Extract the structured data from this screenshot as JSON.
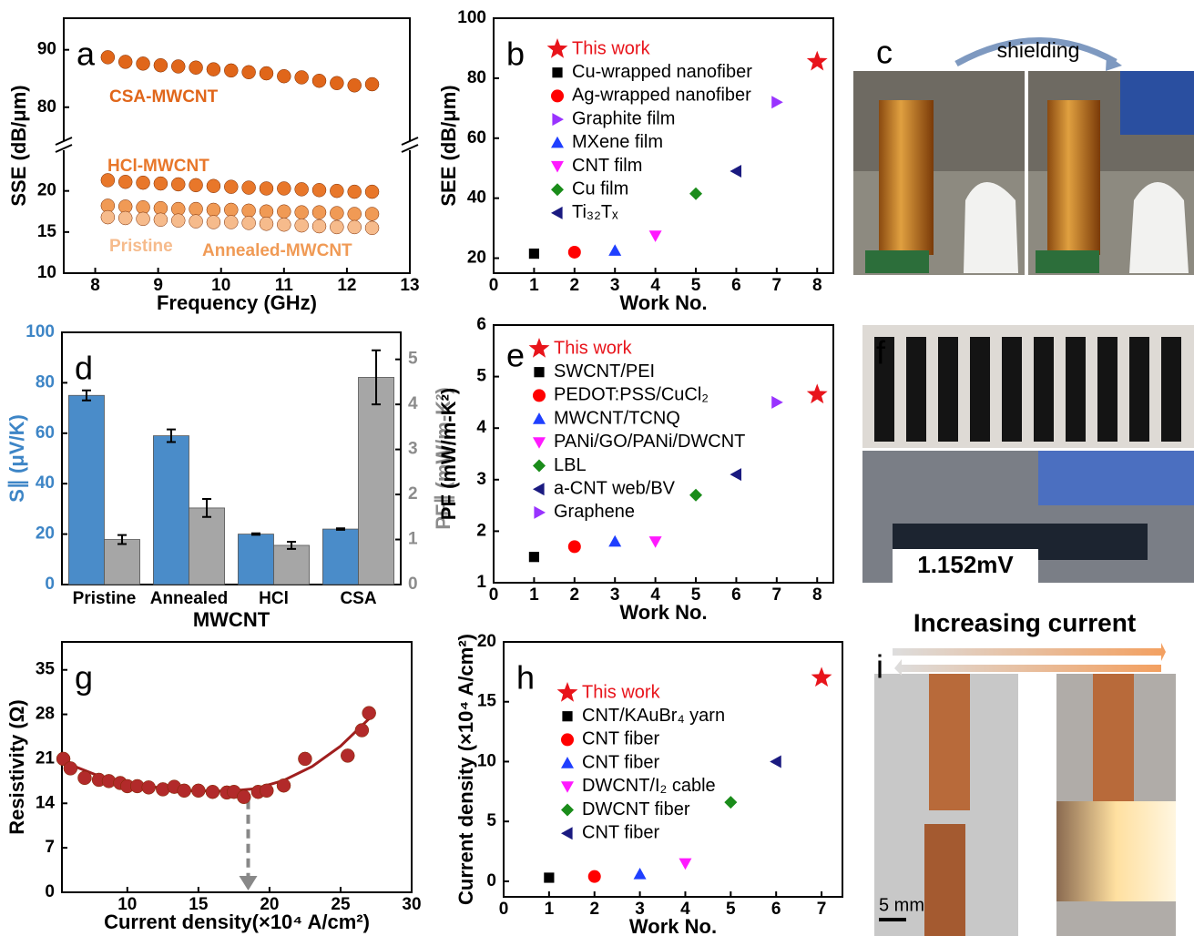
{
  "chart_data": [
    {
      "panel": "a",
      "type": "scatter",
      "x_label": "Frequency (GHz)",
      "y_label": "SSE (dB/μm)",
      "xlim": [
        7.5,
        13
      ],
      "xticks": [
        8,
        9,
        10,
        11,
        12,
        13
      ],
      "ylim": [
        10,
        95.5
      ],
      "ybreak": [
        25.5,
        73.3
      ],
      "yticks": [
        10,
        15,
        20,
        80,
        90
      ],
      "x": [
        8.2,
        8.48,
        8.76,
        9.04,
        9.32,
        9.6,
        9.88,
        10.16,
        10.44,
        10.72,
        11,
        11.28,
        11.56,
        11.84,
        12.12,
        12.4
      ],
      "series": [
        {
          "name": "CSA-MWCNT",
          "color": "#e0661a",
          "marker": "circle",
          "values": [
            88.7,
            87.9,
            87.6,
            87.3,
            87.1,
            86.9,
            86.6,
            86.4,
            86.1,
            85.9,
            85.4,
            85.2,
            84.6,
            84.2,
            83.8,
            84
          ]
        },
        {
          "name": "HCl-MWCNT",
          "color": "#e8772a",
          "marker": "circle",
          "values": [
            21.3,
            21.1,
            21,
            20.9,
            20.8,
            20.7,
            20.6,
            20.5,
            20.4,
            20.3,
            20.3,
            20.2,
            20.1,
            20,
            19.9,
            19.9
          ]
        },
        {
          "name": "Annealed-MWCNT",
          "color": "#f09a55",
          "marker": "circle",
          "values": [
            18.2,
            18.1,
            18,
            17.9,
            17.8,
            17.8,
            17.7,
            17.7,
            17.6,
            17.5,
            17.5,
            17.4,
            17.4,
            17.3,
            17.2,
            17.2
          ]
        },
        {
          "name": "Pristine",
          "color": "#f6bb8c",
          "marker": "circle",
          "values": [
            16.8,
            16.7,
            16.6,
            16.5,
            16.4,
            16.3,
            16.2,
            16.2,
            16.1,
            16,
            15.9,
            15.8,
            15.7,
            15.6,
            15.6,
            15.5
          ]
        }
      ]
    },
    {
      "panel": "b",
      "type": "scatter",
      "x_label": "Work No.",
      "y_label": "SEE (dB/μm)",
      "legend": "upper left",
      "xlim": [
        0,
        8.4
      ],
      "xticks": [
        0,
        1,
        2,
        3,
        4,
        5,
        6,
        7,
        8
      ],
      "ylim": [
        15,
        100
      ],
      "yticks": [
        20,
        40,
        60,
        80,
        100
      ],
      "series": [
        {
          "name": "This work",
          "color": "#e8141b",
          "marker": "star",
          "x": [
            8
          ],
          "values": [
            85.5
          ]
        },
        {
          "name": "Cu-wrapped nanofiber",
          "color": "#000000",
          "marker": "square",
          "x": [
            1
          ],
          "values": [
            21.5
          ]
        },
        {
          "name": "Ag-wrapped nanofiber",
          "color": "#ff0000",
          "marker": "circle",
          "x": [
            2
          ],
          "values": [
            22
          ]
        },
        {
          "name": "Graphite film",
          "color": "#9933ff",
          "marker": "triangle-right",
          "x": [
            7
          ],
          "values": [
            72
          ]
        },
        {
          "name": "MXene film",
          "color": "#1f3fff",
          "marker": "triangle-up",
          "x": [
            3
          ],
          "values": [
            22.5
          ]
        },
        {
          "name": "CNT film",
          "color": "#ff19ff",
          "marker": "triangle-down",
          "x": [
            4
          ],
          "values": [
            27.5
          ]
        },
        {
          "name": "Cu film",
          "color": "#1a8c1a",
          "marker": "diamond",
          "x": [
            5
          ],
          "values": [
            41.5
          ]
        },
        {
          "name": "Ti₃₂Tₓ",
          "color": "#1a1a80",
          "marker": "triangle-left",
          "x": [
            6
          ],
          "values": [
            49
          ]
        }
      ]
    },
    {
      "panel": "d",
      "type": "bar",
      "x_label": "MWCNT",
      "y_label": "S∥ (μV/K)",
      "y2_label": "PF∥ (mW/m-K²)",
      "categories": [
        "Pristine",
        "Annealed",
        "HCl",
        "CSA"
      ],
      "ylim": [
        0,
        100
      ],
      "yticks": [
        0,
        20,
        40,
        60,
        80,
        100
      ],
      "y2lim": [
        0,
        5.6
      ],
      "y2ticks": [
        0,
        1,
        2,
        3,
        4,
        5
      ],
      "series": [
        {
          "color": "#4a8cc9",
          "values": [
            75,
            59,
            20,
            22
          ],
          "errors": [
            2,
            2.5,
            0.3,
            0.3
          ]
        },
        {
          "color": "#a6a6a6",
          "axis": "y2",
          "values": [
            1.0,
            1.7,
            0.87,
            4.6
          ],
          "errors": [
            0.1,
            0.2,
            0.08,
            0.6
          ]
        }
      ]
    },
    {
      "panel": "e",
      "type": "scatter",
      "x_label": "Work No.",
      "y_label": "PF (mW/m-K²)",
      "legend": "upper left",
      "xlim": [
        0,
        8.4
      ],
      "xticks": [
        0,
        1,
        2,
        3,
        4,
        5,
        6,
        7,
        8
      ],
      "ylim": [
        1,
        6
      ],
      "yticks": [
        1,
        2,
        3,
        4,
        5,
        6
      ],
      "series": [
        {
          "name": "This work",
          "color": "#e8141b",
          "marker": "star",
          "x": [
            8
          ],
          "values": [
            4.65
          ]
        },
        {
          "name": "SWCNT/PEI",
          "color": "#000000",
          "marker": "square",
          "x": [
            1
          ],
          "values": [
            1.5
          ]
        },
        {
          "name": "PEDOT:PSS/CuCl₂",
          "color": "#ff0000",
          "marker": "circle",
          "x": [
            2
          ],
          "values": [
            1.7
          ]
        },
        {
          "name": "MWCNT/TCNQ",
          "color": "#1f3fff",
          "marker": "triangle-up",
          "x": [
            3
          ],
          "values": [
            1.8
          ]
        },
        {
          "name": "PANi/GO/PANi/DWCNT",
          "color": "#ff19ff",
          "marker": "triangle-down",
          "x": [
            4
          ],
          "values": [
            1.8
          ]
        },
        {
          "name": "LBL",
          "color": "#1a8c1a",
          "marker": "diamond",
          "x": [
            5
          ],
          "values": [
            2.7
          ]
        },
        {
          "name": "a-CNT web/BV",
          "color": "#1a1a80",
          "marker": "triangle-left",
          "x": [
            6
          ],
          "values": [
            3.1
          ]
        },
        {
          "name": "Graphene",
          "color": "#9933ff",
          "marker": "triangle-right",
          "x": [
            7
          ],
          "values": [
            4.5
          ]
        }
      ]
    },
    {
      "panel": "g",
      "type": "scatter",
      "x_label": "Current density(×10⁴ A/cm²)",
      "y_label": "Resistivity (Ω)",
      "xlim": [
        5.4,
        30
      ],
      "xticks": [
        10,
        15,
        20,
        25,
        30
      ],
      "ylim": [
        0,
        39.4
      ],
      "yticks": [
        0,
        7,
        14,
        21,
        28,
        35
      ],
      "arrow_x": 18.5,
      "series": [
        {
          "color": "#b22a2a",
          "marker": "circle",
          "x": [
            5.5,
            6,
            7,
            8,
            8.7,
            9.5,
            10,
            10.7,
            11.5,
            12.5,
            13.3,
            14,
            15,
            16,
            17,
            17.5,
            18.2,
            19.2,
            19.8,
            21,
            22.5,
            25.5,
            26.5,
            27
          ],
          "values": [
            21,
            19.5,
            18,
            17.7,
            17.5,
            17.2,
            16.7,
            16.7,
            16.5,
            16.2,
            16.6,
            16,
            16,
            15.8,
            15.7,
            15.8,
            15,
            15.8,
            16,
            16.8,
            21,
            21.5,
            25.5,
            28.2
          ]
        }
      ],
      "fit": {
        "color": "#a01e1e",
        "x": [
          5.4,
          8,
          11,
          14,
          17,
          19,
          21,
          23,
          25,
          27
        ],
        "values": [
          20.6,
          18.3,
          16.8,
          16.0,
          15.9,
          16.3,
          17.6,
          19.8,
          23.0,
          27.3
        ]
      }
    },
    {
      "panel": "h",
      "type": "scatter",
      "x_label": "Work No.",
      "y_label": "Current density (×10⁴ A/cm²)",
      "legend": "upper left",
      "xlim": [
        0,
        7.46
      ],
      "xticks": [
        0,
        1,
        2,
        3,
        4,
        5,
        6,
        7
      ],
      "ylim": [
        -1.3,
        20
      ],
      "yticks": [
        0,
        5,
        10,
        15,
        20
      ],
      "series": [
        {
          "name": "This work",
          "color": "#e8141b",
          "marker": "star",
          "x": [
            7
          ],
          "values": [
            17
          ]
        },
        {
          "name": "CNT/KAuBr₄ yarn",
          "color": "#000000",
          "marker": "square",
          "x": [
            1
          ],
          "values": [
            0.3
          ]
        },
        {
          "name": "CNT fiber",
          "color": "#ff0000",
          "marker": "circle",
          "x": [
            2
          ],
          "values": [
            0.4
          ]
        },
        {
          "name": "CNT fiber",
          "color": "#1f3fff",
          "marker": "triangle-up",
          "x": [
            3
          ],
          "values": [
            0.6
          ]
        },
        {
          "name": "DWCNT/I₂  cable",
          "color": "#ff19ff",
          "marker": "triangle-down",
          "x": [
            4
          ],
          "values": [
            1.5
          ]
        },
        {
          "name": "DWCNT fiber",
          "color": "#1a8c1a",
          "marker": "diamond",
          "x": [
            5
          ],
          "values": [
            6.6
          ]
        },
        {
          "name": "CNT fiber",
          "color": "#1a1a80",
          "marker": "triangle-left",
          "x": [
            6
          ],
          "values": [
            10
          ]
        }
      ]
    }
  ],
  "photos": [
    {
      "panel": "c",
      "caption": "shielding"
    },
    {
      "panel": "f",
      "reading": "1.152mV"
    },
    {
      "panel": "i",
      "caption": "Increasing current",
      "scale": "5 mm"
    }
  ]
}
